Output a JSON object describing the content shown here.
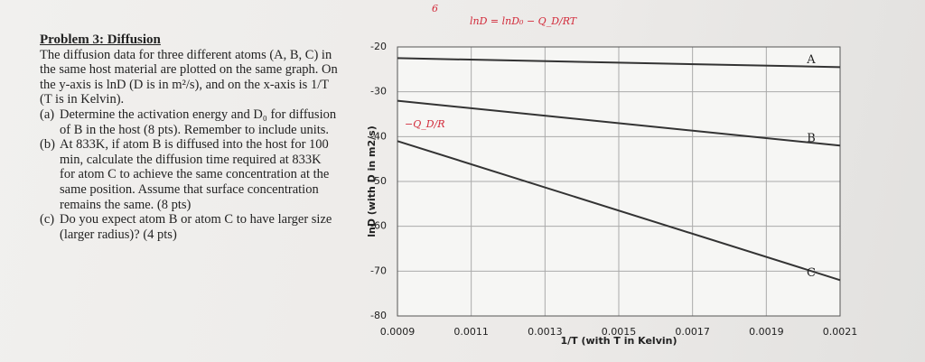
{
  "problem": {
    "title": "Problem 3: Diffusion",
    "intro": "The diffusion data for three different atoms (A, B, C) in the same host material are plotted on the same graph. On the y-axis is lnD (D is in m²/s), and on the x-axis is 1/T (T is in Kelvin).",
    "parts": [
      {
        "label": "(a)",
        "text": "Determine the activation energy and D₀ for diffusion of B in the host (8 pts). Remember to include units."
      },
      {
        "label": "(b)",
        "text": "At 833K, if atom B is diffused into the host for 100 min, calculate the diffusion time required at 833K for atom C to achieve the same concentration at the same position. Assume that surface concentration remains the same. (8 pts)"
      },
      {
        "label": "(c)",
        "text": "Do you expect atom B or atom C to have larger size (larger radius)? (4 pts)"
      }
    ]
  },
  "chart_data": {
    "type": "line",
    "x_label": "1/T (with T in Kelvin)",
    "y_label": "lnD (with D in m2/s)",
    "x": [
      0.0009,
      0.0021
    ],
    "series": [
      {
        "name": "A",
        "color": "#333333",
        "values": [
          -22.5,
          -24.5
        ]
      },
      {
        "name": "B",
        "color": "#333333",
        "values": [
          -32,
          -42
        ]
      },
      {
        "name": "C",
        "color": "#333333",
        "values": [
          -41,
          -72
        ]
      }
    ],
    "xlim": [
      0.0009,
      0.0021
    ],
    "ylim": [
      -80,
      -20
    ],
    "xticks": [
      0.0009,
      0.0011,
      0.0013,
      0.0015,
      0.0017,
      0.0019,
      0.0021
    ],
    "yticks": [
      -20,
      -30,
      -40,
      -50,
      -60,
      -70,
      -80
    ],
    "grid": true,
    "annotations": [
      "6",
      "lnD = lnD₀ − Q_D/RT",
      "−Q_D/R"
    ]
  }
}
